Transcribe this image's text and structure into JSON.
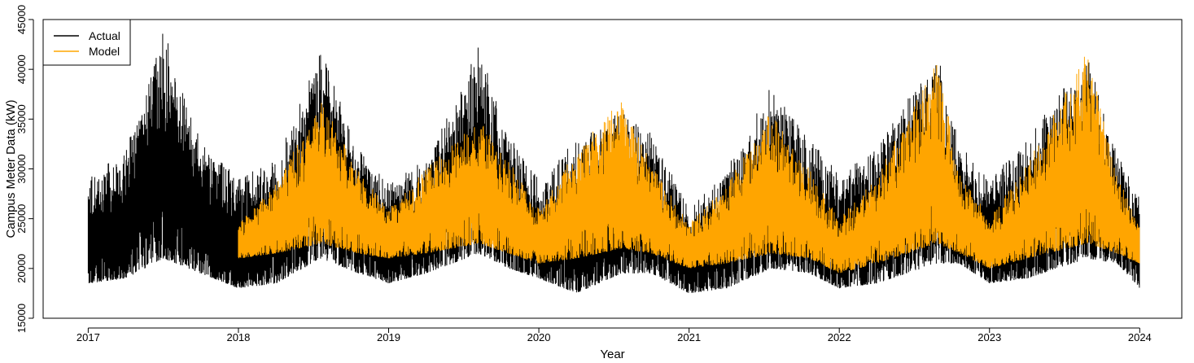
{
  "chart_data": {
    "type": "line",
    "title": "",
    "xlabel": "Year",
    "ylabel": "Campus Meter Data (kW)",
    "x_ticks": [
      "2017",
      "2018",
      "2019",
      "2020",
      "2021",
      "2022",
      "2023",
      "2024"
    ],
    "y_ticks": [
      "15000",
      "20000",
      "25000",
      "30000",
      "35000",
      "40000",
      "45000"
    ],
    "xlim": [
      2016.7,
      2024.28
    ],
    "ylim": [
      15000,
      45000
    ],
    "grid": false,
    "legend_position": "top-left",
    "series": [
      {
        "name": "Actual",
        "color": "#000000",
        "x_range": [
          2017.0,
          2024.0
        ],
        "approx_envelope": {
          "x": [
            2017.0,
            2017.25,
            2017.5,
            2017.75,
            2018.0,
            2018.25,
            2018.55,
            2018.8,
            2019.0,
            2019.25,
            2019.6,
            2019.8,
            2020.0,
            2020.25,
            2020.55,
            2020.75,
            2021.0,
            2021.25,
            2021.55,
            2021.8,
            2022.0,
            2022.25,
            2022.65,
            2022.8,
            2023.0,
            2023.25,
            2023.65,
            2023.85,
            2024.0
          ],
          "low": [
            18500,
            19000,
            21000,
            19500,
            18000,
            18500,
            21000,
            19500,
            18500,
            19500,
            21500,
            20000,
            19000,
            17500,
            19500,
            19500,
            17500,
            18000,
            20000,
            19500,
            18000,
            18500,
            20500,
            20500,
            18500,
            19000,
            21000,
            20500,
            18000
          ],
          "high": [
            29000,
            32000,
            44000,
            33000,
            29000,
            31000,
            42000,
            32000,
            28500,
            31000,
            42500,
            33500,
            29000,
            33000,
            36000,
            33500,
            26000,
            30000,
            39000,
            33000,
            29500,
            32000,
            42000,
            32500,
            29000,
            33000,
            41500,
            31500,
            27000
          ]
        }
      },
      {
        "name": "Model",
        "color": "#FFA500",
        "x_range": [
          2018.0,
          2024.0
        ],
        "approx_envelope": {
          "x": [
            2018.0,
            2018.25,
            2018.55,
            2018.8,
            2019.0,
            2019.25,
            2019.6,
            2019.8,
            2020.0,
            2020.25,
            2020.55,
            2020.75,
            2021.0,
            2021.25,
            2021.55,
            2021.8,
            2022.0,
            2022.25,
            2022.65,
            2022.8,
            2023.0,
            2023.25,
            2023.65,
            2023.85,
            2024.0
          ],
          "low": [
            21000,
            21500,
            22500,
            21500,
            21000,
            21500,
            22500,
            21500,
            20500,
            21000,
            22000,
            21500,
            20000,
            20500,
            21500,
            21000,
            19500,
            20500,
            22500,
            21500,
            20000,
            21000,
            22500,
            21500,
            20500
          ],
          "high": [
            24500,
            28500,
            37000,
            30000,
            26000,
            30000,
            35000,
            31000,
            26000,
            32000,
            37000,
            30500,
            24500,
            28500,
            36000,
            30000,
            25000,
            29500,
            41000,
            30000,
            25000,
            30500,
            42000,
            29500,
            24500
          ]
        }
      }
    ]
  }
}
